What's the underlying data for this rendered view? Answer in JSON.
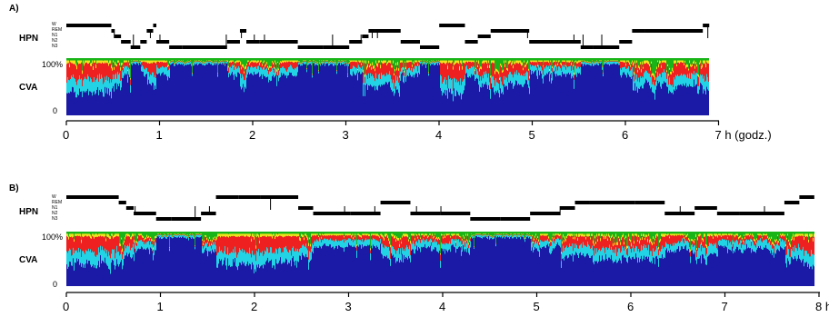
{
  "figure": {
    "panels": [
      {
        "id": "A",
        "label": "A)",
        "hypnogram_label": "HPN",
        "cva_label": "CVA",
        "stage_labels": [
          "W",
          "REM",
          "N1",
          "N2",
          "N3"
        ],
        "y_top_label": "100%",
        "y_bottom_label": "0",
        "x_tick_labels": [
          "0",
          "1",
          "2",
          "3",
          "4",
          "5",
          "6",
          "7 h (godz.)"
        ],
        "x_ticks": [
          0,
          1,
          2,
          3,
          4,
          5,
          6,
          7
        ],
        "duration_h": 6.9
      },
      {
        "id": "B",
        "label": "B)",
        "hypnogram_label": "HPN",
        "cva_label": "CVA",
        "stage_labels": [
          "W",
          "REM",
          "N1",
          "N2",
          "N3"
        ],
        "y_top_label": "100%",
        "y_bottom_label": "0",
        "x_tick_labels": [
          "0",
          "1",
          "2",
          "3",
          "4",
          "5",
          "6",
          "7",
          "8 h"
        ],
        "x_ticks": [
          0,
          1,
          2,
          3,
          4,
          5,
          6,
          7,
          8
        ],
        "duration_h": 7.95
      }
    ],
    "colors": {
      "dark_blue": "#1a1aa6",
      "cyan": "#22d3e6",
      "red": "#ee2020",
      "yellow": "#f2e21c",
      "green": "#18b418",
      "black": "#000000"
    }
  }
}
